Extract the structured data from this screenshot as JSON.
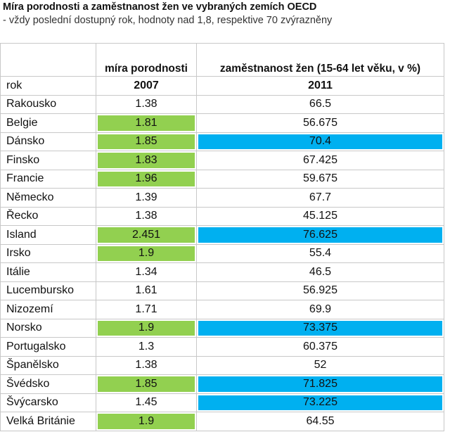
{
  "header": {
    "title": "Míra porodnosti a zaměstnanost žen ve vybraných zemích OECD",
    "subtitle": "- vždy poslední dostupný rok, hodnoty nad 1,8, respektive 70 zvýrazněny"
  },
  "table": {
    "columns": [
      "",
      "míra porodnosti",
      "zaměstnanost žen (15-64 let věku, v %)"
    ],
    "year_row": [
      "rok",
      "2007",
      "2011"
    ],
    "highlight": [
      null,
      {
        "above": 1.8,
        "color": "#92d050"
      },
      {
        "above": 70,
        "color": "#00b0f0"
      }
    ],
    "rows": [
      [
        "Rakousko",
        1.38,
        66.5
      ],
      [
        "Belgie",
        1.81,
        56.675
      ],
      [
        "Dánsko",
        1.85,
        70.4
      ],
      [
        "Finsko",
        1.83,
        67.425
      ],
      [
        "Francie",
        1.96,
        59.675
      ],
      [
        "Německo",
        1.39,
        67.7
      ],
      [
        "Řecko",
        1.38,
        45.125
      ],
      [
        "Island",
        2.451,
        76.625
      ],
      [
        "Irsko",
        1.9,
        55.4
      ],
      [
        "Itálie",
        1.34,
        46.5
      ],
      [
        "Lucembursko",
        1.61,
        56.925
      ],
      [
        "Nizozemí",
        1.71,
        69.9
      ],
      [
        "Norsko",
        1.9,
        73.375
      ],
      [
        "Portugalsko",
        1.3,
        60.375
      ],
      [
        "Španělsko",
        1.38,
        52
      ],
      [
        "Švédsko",
        1.85,
        71.825
      ],
      [
        "Švýcarsko",
        1.45,
        73.225
      ],
      [
        "Velká Británie",
        1.9,
        64.55
      ]
    ]
  }
}
